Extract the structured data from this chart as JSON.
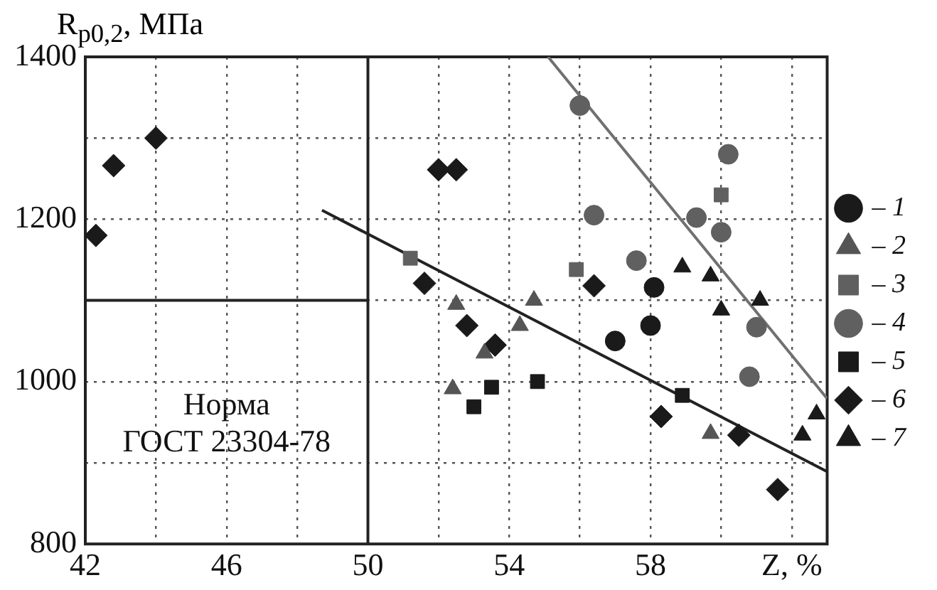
{
  "chart_data": {
    "type": "scatter",
    "ylabel": "R$_{p0,2}$, МПа",
    "xlim": [
      42,
      63
    ],
    "xticks": [
      42,
      {
        "value": 44,
        "label": null
      },
      46,
      {
        "value": 48,
        "label": null
      },
      50,
      {
        "value": 52,
        "label": null
      },
      54,
      {
        "value": 56,
        "label": null
      },
      58,
      {
        "value": 60,
        "label": null
      },
      {
        "value": 62,
        "label": "Z, %"
      }
    ],
    "ylim": [
      800,
      1400
    ],
    "yticks": [
      800,
      {
        "value": 900,
        "label": null
      },
      1000,
      {
        "value": 1100,
        "label": null
      },
      1200,
      {
        "value": 1300,
        "label": null
      },
      1400
    ],
    "grid": true,
    "legend": "right",
    "ref_lines": [
      {
        "axis": "x",
        "value": 50,
        "color": "#222222"
      },
      {
        "axis": "y",
        "value": 1100,
        "color": "#222222"
      }
    ],
    "annotations": [
      "Норма\nГОСТ 23304-78"
    ],
    "series": [
      {
        "name": "– 1",
        "color": "#1a1a1a",
        "marker": "circle",
        "x": [
          57.0,
          58.0,
          58.1
        ],
        "values": [
          1050,
          1069,
          1116
        ]
      },
      {
        "name": "– 2",
        "color": "#555555",
        "marker": "triangle",
        "x": [
          52.4,
          52.5,
          53.3,
          54.3,
          54.7,
          59.7
        ],
        "values": [
          991,
          1095,
          1035,
          1069,
          1100,
          936
        ]
      },
      {
        "name": "– 3",
        "color": "#606060",
        "marker": "square",
        "x": [
          51.2,
          55.9,
          60.0
        ],
        "values": [
          1152,
          1138,
          1230
        ]
      },
      {
        "name": "– 4",
        "color": "#606060",
        "marker": "circle",
        "x": [
          56.0,
          56.4,
          57.6,
          59.3,
          60.0,
          60.2,
          60.8,
          61.0
        ],
        "values": [
          1340,
          1205,
          1149,
          1202,
          1184,
          1280,
          1006,
          1067
        ]
      },
      {
        "name": "– 5",
        "color": "#1a1a1a",
        "marker": "square",
        "x": [
          53.0,
          53.5,
          54.8,
          58.9
        ],
        "values": [
          969,
          993,
          1000,
          983
        ]
      },
      {
        "name": "– 6",
        "color": "#1a1a1a",
        "marker": "diamond",
        "x": [
          42.3,
          42.8,
          44.0,
          51.6,
          52.0,
          52.5,
          52.8,
          53.6,
          56.4,
          58.3,
          60.5,
          61.6
        ],
        "values": [
          1180,
          1266,
          1300,
          1121,
          1261,
          1261,
          1069,
          1045,
          1118,
          957,
          934,
          867
        ]
      },
      {
        "name": "– 7",
        "color": "#1a1a1a",
        "marker": "triangle",
        "x": [
          58.9,
          59.7,
          60.0,
          61.1,
          62.3,
          62.7
        ],
        "values": [
          1141,
          1130,
          1088,
          1100,
          934,
          960
        ]
      },
      {
        "type": "line",
        "color": "#222222",
        "marker": "none",
        "x": [
          48.7,
          63
        ],
        "values": [
          1211,
          889
        ]
      },
      {
        "type": "line",
        "color": "#707070",
        "marker": "none",
        "x": [
          55.1,
          63
        ],
        "values": [
          1400,
          979
        ]
      }
    ]
  }
}
